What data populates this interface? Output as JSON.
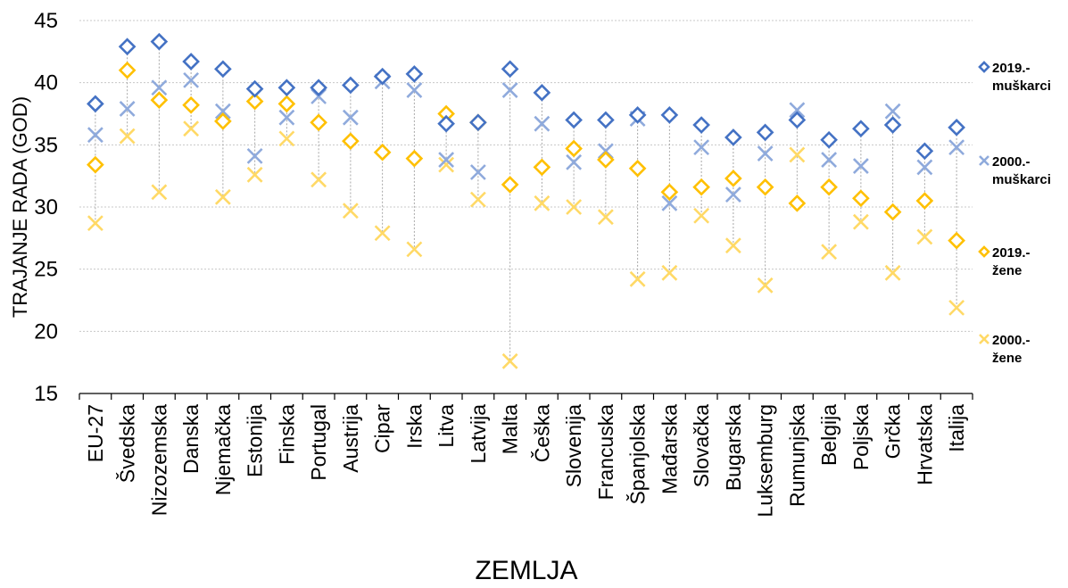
{
  "chart_data": {
    "type": "scatter",
    "ylabel": "TRAJANJE RADA (GOD)",
    "xlabel": "ZEMLJA",
    "ylim": [
      15,
      45
    ],
    "yticks": [
      "15",
      "20",
      "25",
      "30",
      "35",
      "40",
      "45"
    ],
    "grid": "horizontal dotted",
    "legend_position": "right",
    "categories": [
      "EU-27",
      "Švedska",
      "Nizozemska",
      "Danska",
      "Njemačka",
      "Estonija",
      "Finska",
      "Portugal",
      "Austrija",
      "Cipar",
      "Irska",
      "Litva",
      "Latvija",
      "Malta",
      "Češka",
      "Slovenija",
      "Francuska",
      "Španjolska",
      "Mađarska",
      "Slovačka",
      "Bugarska",
      "Luksemburg",
      "Rumunjska",
      "Belgija",
      "Poljska",
      "Grčka",
      "Hrvatska",
      "Italija"
    ],
    "series": [
      {
        "name": "2019.- muškarci",
        "legend_lines": [
          "2019.-",
          "muškarci"
        ],
        "marker": "diamond",
        "color": "#4472C4",
        "values": [
          38.3,
          42.9,
          43.3,
          41.7,
          41.1,
          39.5,
          39.6,
          39.6,
          39.8,
          40.5,
          40.7,
          36.7,
          36.8,
          41.1,
          39.2,
          37.0,
          37.0,
          37.4,
          37.4,
          36.6,
          35.6,
          36.0,
          37.0,
          35.4,
          36.3,
          36.6,
          34.5,
          36.4
        ]
      },
      {
        "name": "2000.- muškarci",
        "legend_lines": [
          "2000.-",
          "muškarci"
        ],
        "marker": "x",
        "color": "#8FAADC",
        "values": [
          35.8,
          37.9,
          39.6,
          40.2,
          37.7,
          34.1,
          37.2,
          38.9,
          37.2,
          40.1,
          39.4,
          33.8,
          32.8,
          39.4,
          36.7,
          33.6,
          34.5,
          37.1,
          30.3,
          34.8,
          31.0,
          34.3,
          37.8,
          33.8,
          33.3,
          37.7,
          33.2,
          34.8
        ]
      },
      {
        "name": "2019.- žene",
        "legend_lines": [
          "2019.-",
          "žene"
        ],
        "marker": "diamond",
        "color": "#FFC000",
        "values": [
          33.4,
          41.0,
          38.6,
          38.2,
          36.9,
          38.5,
          38.3,
          36.8,
          35.3,
          34.4,
          33.9,
          37.5,
          36.8,
          31.8,
          33.2,
          34.7,
          33.8,
          33.1,
          31.2,
          31.6,
          32.3,
          31.6,
          30.3,
          31.6,
          30.7,
          29.6,
          30.5,
          27.3
        ]
      },
      {
        "name": "2000.- žene",
        "legend_lines": [
          "2000.-",
          "žene"
        ],
        "marker": "x",
        "color": "#FFD966",
        "values": [
          28.7,
          35.7,
          31.2,
          36.3,
          30.8,
          32.6,
          35.5,
          32.2,
          29.7,
          27.9,
          26.6,
          33.4,
          30.6,
          17.6,
          30.3,
          30.0,
          29.2,
          24.2,
          24.7,
          29.3,
          26.9,
          23.7,
          34.2,
          26.4,
          28.8,
          24.7,
          27.6,
          21.9
        ]
      }
    ]
  }
}
